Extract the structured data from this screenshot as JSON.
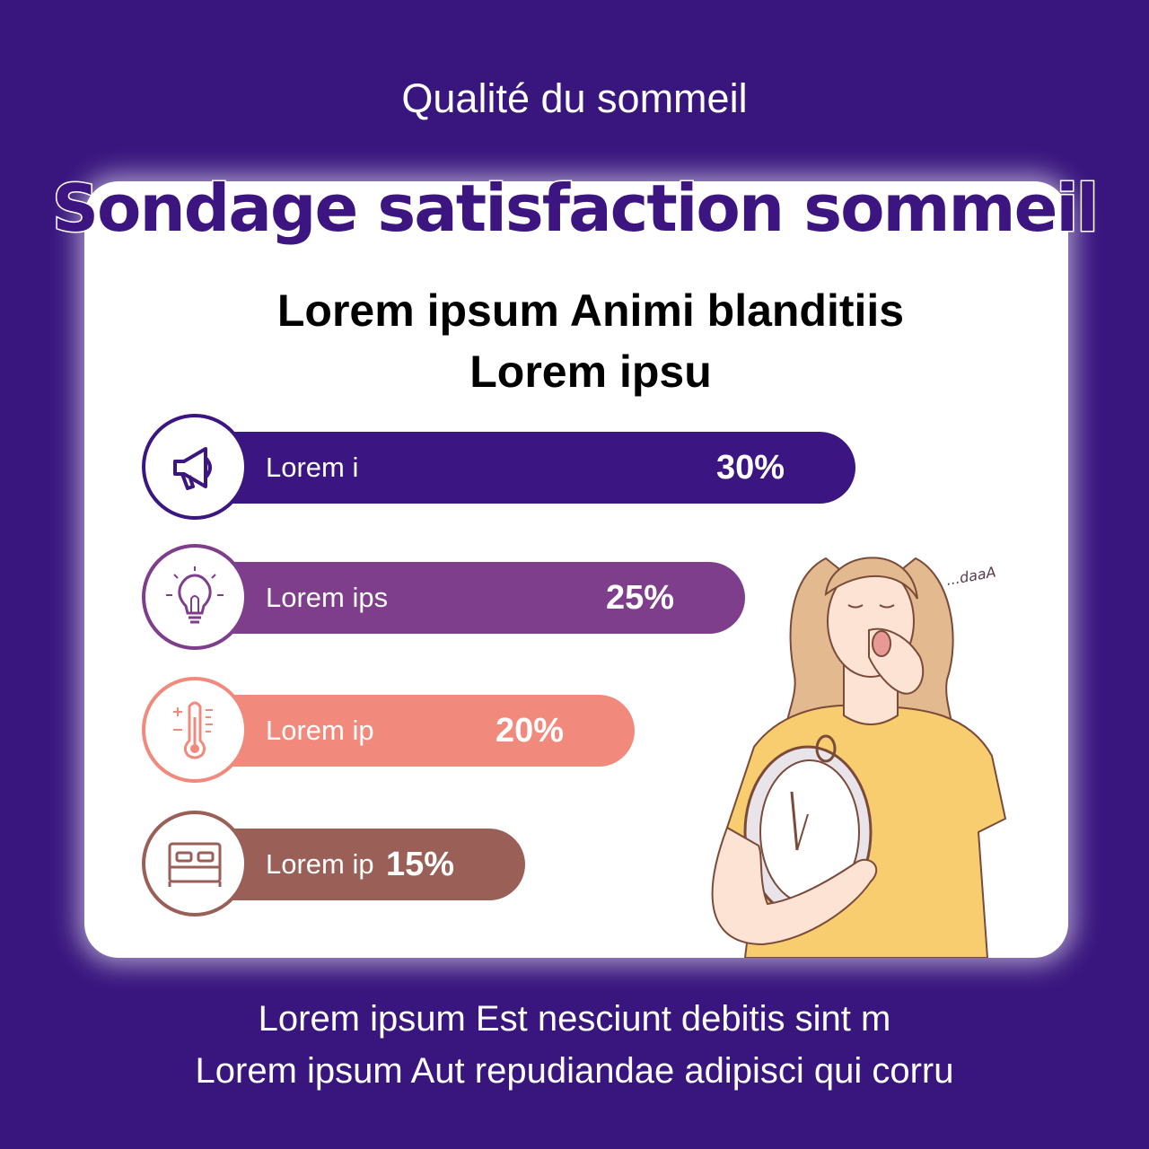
{
  "header": {
    "subtitle": "Qualité du sommeil",
    "title": "Sondage satisfaction sommeil"
  },
  "chart_data": {
    "type": "bar",
    "title": "Lorem ipsum Animi blanditiis Lorem ipsu",
    "title_lines": [
      "Lorem ipsum Animi blanditiis",
      "Lorem ipsu"
    ],
    "orientation": "horizontal",
    "xlim": [
      0,
      30
    ],
    "categories": [
      "Lorem i",
      "Lorem ips",
      "Lorem ip",
      "Lorem ip"
    ],
    "values": [
      30,
      25,
      20,
      15
    ],
    "value_labels": [
      "30%",
      "25%",
      "20%",
      "15%"
    ],
    "colors": [
      "#3b1682",
      "#7e3e8c",
      "#f18a7d",
      "#9a5f57"
    ],
    "icons": [
      "megaphone-icon",
      "lightbulb-icon",
      "thermometer-icon",
      "bed-icon"
    ],
    "grid": false,
    "legend": "none"
  },
  "illustration": {
    "caption": "...daaA"
  },
  "footer": {
    "line1": "Lorem ipsum Est nesciunt debitis sint m",
    "line2": "Lorem ipsum Aut repudiandae adipisci qui corru"
  }
}
